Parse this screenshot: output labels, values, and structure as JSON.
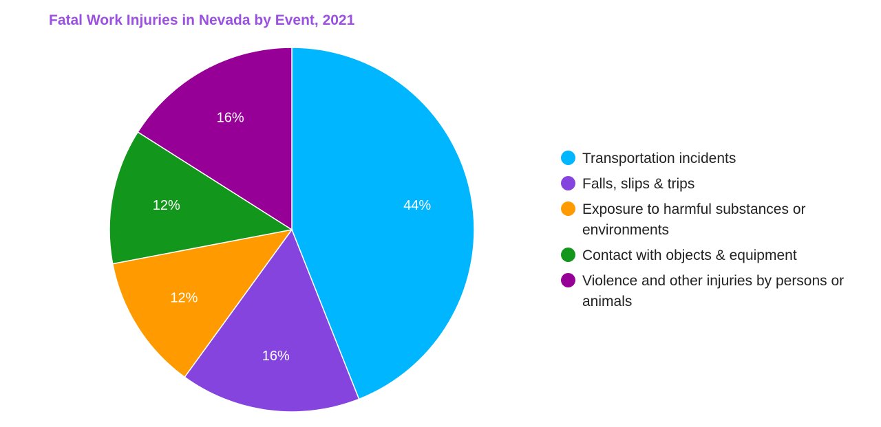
{
  "chart_data": {
    "type": "pie",
    "title": "Fatal Work Injuries in Nevada by Event, 2021",
    "title_color": "#9b51e0",
    "legend_position": "right",
    "slices": [
      {
        "name": "Transportation incidents",
        "value": 44,
        "label": "44%",
        "color": "#00b7ff"
      },
      {
        "name": "Falls, slips & trips",
        "value": 16,
        "label": "16%",
        "color": "#8544dd"
      },
      {
        "name": "Exposure to harmful substances or environments",
        "value": 12,
        "label": "12%",
        "color": "#ff9b00"
      },
      {
        "name": "Contact with objects & equipment",
        "value": 12,
        "label": "12%",
        "color": "#12961b"
      },
      {
        "name": "Violence and other injuries by persons or animals",
        "value": 16,
        "label": "16%",
        "color": "#960096"
      }
    ]
  }
}
